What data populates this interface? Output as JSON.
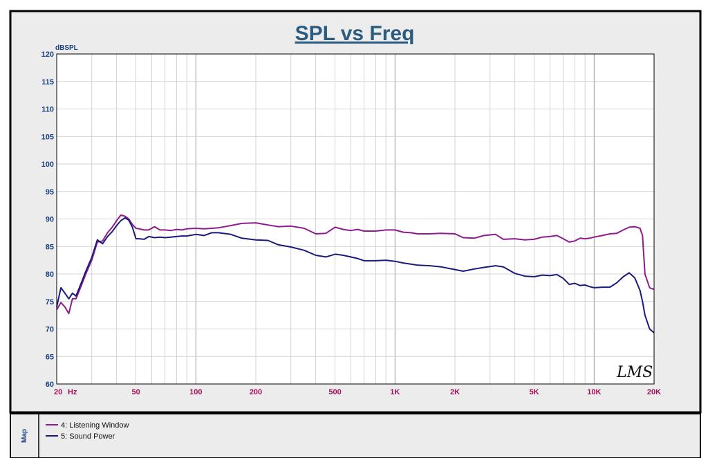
{
  "chart_data": {
    "type": "line",
    "title": "SPL vs Freq",
    "ylabel": "dBSPL",
    "xlabel": "Hz",
    "x_scale": "log",
    "xlim": [
      20,
      20000
    ],
    "ylim": [
      60,
      120
    ],
    "grid": true,
    "legend_placement": "bottom-left",
    "x_ticks": [
      {
        "value": 20,
        "label": "20"
      },
      {
        "value": 50,
        "label": "50"
      },
      {
        "value": 100,
        "label": "100"
      },
      {
        "value": 200,
        "label": "200"
      },
      {
        "value": 500,
        "label": "500"
      },
      {
        "value": 1000,
        "label": "1K"
      },
      {
        "value": 2000,
        "label": "2K"
      },
      {
        "value": 5000,
        "label": "5K"
      },
      {
        "value": 10000,
        "label": "10K"
      },
      {
        "value": 20000,
        "label": "20K"
      }
    ],
    "y_ticks": [
      60,
      65,
      70,
      75,
      80,
      85,
      90,
      95,
      100,
      105,
      110,
      115,
      120
    ],
    "series": [
      {
        "name": "4: Listening Window",
        "color": "#8e1b8e",
        "x": [
          20,
          21,
          22,
          23,
          24,
          25,
          26,
          27,
          28,
          30,
          32,
          34,
          36,
          38,
          40,
          42,
          44,
          46,
          48,
          50,
          52,
          55,
          58,
          62,
          66,
          70,
          75,
          80,
          85,
          90,
          100,
          110,
          120,
          130,
          150,
          170,
          200,
          230,
          260,
          300,
          350,
          400,
          450,
          500,
          550,
          600,
          650,
          700,
          800,
          900,
          1000,
          1100,
          1200,
          1300,
          1500,
          1700,
          2000,
          2200,
          2500,
          2800,
          3200,
          3500,
          4000,
          4500,
          5000,
          5500,
          6000,
          6500,
          7000,
          7500,
          8000,
          8500,
          9000,
          9500,
          10000,
          11000,
          12000,
          13000,
          14000,
          15000,
          16000,
          17000,
          17500,
          18000,
          19000,
          20000
        ],
        "values": [
          73.5,
          74.8,
          74.0,
          72.8,
          75.5,
          75.5,
          77.0,
          78.5,
          80.0,
          82.5,
          85.8,
          86.0,
          87.5,
          88.5,
          89.7,
          90.7,
          90.5,
          90.0,
          89.0,
          88.3,
          88.2,
          88.0,
          88.0,
          88.6,
          88.0,
          88.0,
          87.9,
          88.1,
          88.0,
          88.2,
          88.3,
          88.2,
          88.3,
          88.4,
          88.8,
          89.2,
          89.3,
          88.9,
          88.6,
          88.7,
          88.3,
          87.3,
          87.4,
          88.5,
          88.1,
          87.9,
          88.1,
          87.8,
          87.8,
          88.0,
          88.0,
          87.6,
          87.5,
          87.3,
          87.3,
          87.4,
          87.3,
          86.6,
          86.5,
          87.0,
          87.2,
          86.3,
          86.4,
          86.2,
          86.3,
          86.7,
          86.8,
          87.0,
          86.4,
          85.8,
          86.0,
          86.5,
          86.4,
          86.5,
          86.7,
          87.0,
          87.3,
          87.4,
          88.0,
          88.5,
          88.6,
          88.3,
          87.0,
          80.0,
          77.5,
          77.2
        ]
      },
      {
        "name": "5: Sound Power",
        "color": "#1a1a7a",
        "x": [
          20,
          21,
          22,
          23,
          24,
          25,
          26,
          27,
          28,
          30,
          32,
          34,
          36,
          38,
          40,
          42,
          44,
          46,
          48,
          50,
          52,
          55,
          58,
          62,
          66,
          70,
          75,
          80,
          85,
          90,
          100,
          110,
          120,
          130,
          150,
          170,
          200,
          230,
          260,
          300,
          350,
          400,
          450,
          500,
          550,
          600,
          650,
          700,
          800,
          900,
          1000,
          1100,
          1200,
          1300,
          1500,
          1700,
          2000,
          2200,
          2500,
          2800,
          3200,
          3500,
          4000,
          4500,
          5000,
          5500,
          6000,
          6500,
          7000,
          7500,
          8000,
          8500,
          9000,
          9500,
          10000,
          11000,
          12000,
          13000,
          14000,
          15000,
          16000,
          17000,
          17500,
          18000,
          19000,
          20000
        ],
        "values": [
          74.0,
          77.5,
          76.5,
          75.5,
          76.5,
          76.0,
          77.5,
          79.0,
          80.5,
          83.0,
          86.2,
          85.5,
          86.8,
          87.7,
          88.8,
          89.7,
          90.2,
          89.8,
          88.5,
          86.4,
          86.4,
          86.3,
          86.8,
          86.6,
          86.7,
          86.6,
          86.7,
          86.8,
          86.9,
          86.9,
          87.2,
          87.0,
          87.5,
          87.5,
          87.2,
          86.5,
          86.2,
          86.1,
          85.3,
          84.9,
          84.3,
          83.4,
          83.1,
          83.6,
          83.4,
          83.1,
          82.8,
          82.4,
          82.4,
          82.5,
          82.3,
          82.0,
          81.8,
          81.6,
          81.5,
          81.3,
          80.8,
          80.5,
          80.9,
          81.2,
          81.5,
          81.3,
          80.1,
          79.6,
          79.5,
          79.8,
          79.7,
          79.9,
          79.2,
          78.1,
          78.3,
          77.9,
          78.0,
          77.7,
          77.5,
          77.6,
          77.6,
          78.4,
          79.5,
          80.2,
          79.3,
          77.0,
          75.0,
          72.5,
          70.0,
          69.3
        ]
      }
    ]
  },
  "map_label": "Map",
  "signature": "LMS",
  "colors": {
    "title": "#2b5b7e",
    "y_ticks": "#1a3f7a",
    "x_ticks": "#a0105a",
    "grid": "#c8c8c8",
    "frame_bg": "#ececec",
    "plot_bg": "#ffffff"
  }
}
